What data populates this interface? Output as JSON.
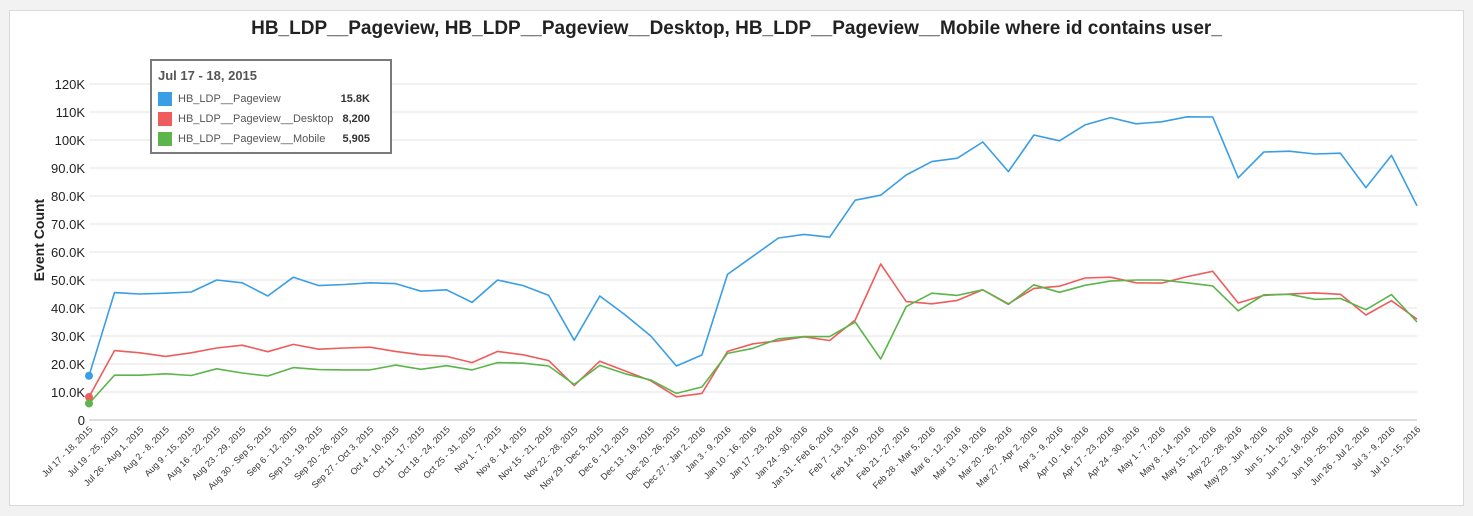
{
  "chart_data": {
    "type": "line",
    "title": "HB_LDP__Pageview, HB_LDP__Pageview__Desktop, HB_LDP__Pageview__Mobile where id contains user_",
    "ylabel": "Event Count",
    "xlabel": "",
    "ylim": [
      0,
      120000
    ],
    "yticks": [
      0,
      10000,
      20000,
      30000,
      40000,
      50000,
      60000,
      70000,
      80000,
      90000,
      100000,
      110000,
      120000
    ],
    "ytick_labels": [
      "0",
      "10.0K",
      "20.0K",
      "30.0K",
      "40.0K",
      "50.0K",
      "60.0K",
      "70.0K",
      "80.0K",
      "90.0K",
      "100K",
      "110K",
      "120K"
    ],
    "grid": true,
    "categories": [
      "Jul 17 - 18, 2015",
      "Jul 19 - 25, 2015",
      "Jul 26 - Aug 1, 2015",
      "Aug 2 - 8, 2015",
      "Aug 9 - 15, 2015",
      "Aug 16 - 22, 2015",
      "Aug 23 - 29, 2015",
      "Aug 30 - Sep 5, 2015",
      "Sep 6 - 12, 2015",
      "Sep 13 - 19, 2015",
      "Sep 20 - 26, 2015",
      "Sep 27 - Oct 3, 2015",
      "Oct 4 - 10, 2015",
      "Oct 11 - 17, 2015",
      "Oct 18 - 24, 2015",
      "Oct 25 - 31, 2015",
      "Nov 1 - 7, 2015",
      "Nov 8 - 14, 2015",
      "Nov 15 - 21, 2015",
      "Nov 22 - 28, 2015",
      "Nov 29 - Dec 5, 2015",
      "Dec 6 - 12, 2015",
      "Dec 13 - 19, 2015",
      "Dec 20 - 26, 2015",
      "Dec 27 - Jan 2, 2016",
      "Jan 3 - 9, 2016",
      "Jan 10 - 16, 2016",
      "Jan 17 - 23, 2016",
      "Jan 24 - 30, 2016",
      "Jan 31 - Feb 6, 2016",
      "Feb 7 - 13, 2016",
      "Feb 14 - 20, 2016",
      "Feb 21 - 27, 2016",
      "Feb 28 - Mar 5, 2016",
      "Mar 6 - 12, 2016",
      "Mar 13 - 19, 2016",
      "Mar 20 - 26, 2016",
      "Mar 27 - Apr 2, 2016",
      "Apr 3 - 9, 2016",
      "Apr 10 - 16, 2016",
      "Apr 17 - 23, 2016",
      "Apr 24 - 30, 2016",
      "May 1 - 7, 2016",
      "May 8 - 14, 2016",
      "May 15 - 21, 2016",
      "May 22 - 28, 2016",
      "May 29 - Jun 4, 2016",
      "Jun 5 - 11, 2016",
      "Jun 12 - 18, 2016",
      "Jun 19 - 25, 2016",
      "Jun 26 - Jul 2, 2016",
      "Jul 3 - 9, 2016",
      "Jul 10 - 15, 2016"
    ],
    "series": [
      {
        "name": "HB_LDP__Pageview",
        "color": "#3a9ee4",
        "values": [
          15800,
          45500,
          45000,
          45300,
          45700,
          50000,
          49000,
          44300,
          51000,
          48000,
          48400,
          49000,
          48700,
          46000,
          46500,
          42000,
          50000,
          48000,
          44500,
          28500,
          44300,
          37500,
          30000,
          19300,
          23200,
          52000,
          58500,
          65000,
          66300,
          65300,
          78500,
          80300,
          87500,
          92300,
          93500,
          99300,
          88700,
          101800,
          99700,
          105400,
          108000,
          105800,
          106500,
          108300,
          108200,
          86500,
          95700,
          96000,
          95000,
          95300,
          83000,
          94500,
          76500
        ]
      },
      {
        "name": "HB_LDP__Pageview__Desktop",
        "color": "#ee5c5c",
        "values": [
          8200,
          24800,
          24000,
          22700,
          24000,
          25700,
          26700,
          24400,
          27000,
          25300,
          25700,
          26000,
          24500,
          23300,
          22700,
          20500,
          24500,
          23300,
          21200,
          12300,
          21000,
          17500,
          14000,
          8300,
          9500,
          24500,
          27200,
          28300,
          29700,
          28400,
          35700,
          55700,
          42300,
          41500,
          42700,
          46500,
          41500,
          47000,
          47800,
          50700,
          51000,
          49000,
          48900,
          51200,
          53100,
          41800,
          44500,
          45000,
          45400,
          44900,
          37500,
          42600,
          36000
        ]
      },
      {
        "name": "HB_LDP__Pageview__Mobile",
        "color": "#5bb54a",
        "values": [
          5905,
          16000,
          16000,
          16500,
          15900,
          18300,
          16800,
          15700,
          18700,
          18000,
          17900,
          17900,
          19600,
          18100,
          19400,
          17900,
          20500,
          20300,
          19300,
          12700,
          19500,
          16500,
          14300,
          9500,
          11800,
          23800,
          25600,
          29000,
          29800,
          29800,
          35000,
          21800,
          40500,
          45300,
          44500,
          46500,
          41300,
          48300,
          45600,
          48100,
          49600,
          50000,
          50000,
          49000,
          47900,
          39000,
          44700,
          44900,
          43100,
          43400,
          39400,
          44800,
          35000
        ]
      }
    ],
    "legend": "top-left",
    "tooltip": {
      "title": "Jul 17 - 18, 2015",
      "rows": [
        {
          "name": "HB_LDP__Pageview",
          "value": "15.8K",
          "color": "#3a9ee4"
        },
        {
          "name": "HB_LDP__Pageview__Desktop",
          "value": "8,200",
          "color": "#ee5c5c"
        },
        {
          "name": "HB_LDP__Pageview__Mobile",
          "value": "5,905",
          "color": "#5bb54a"
        }
      ]
    }
  }
}
